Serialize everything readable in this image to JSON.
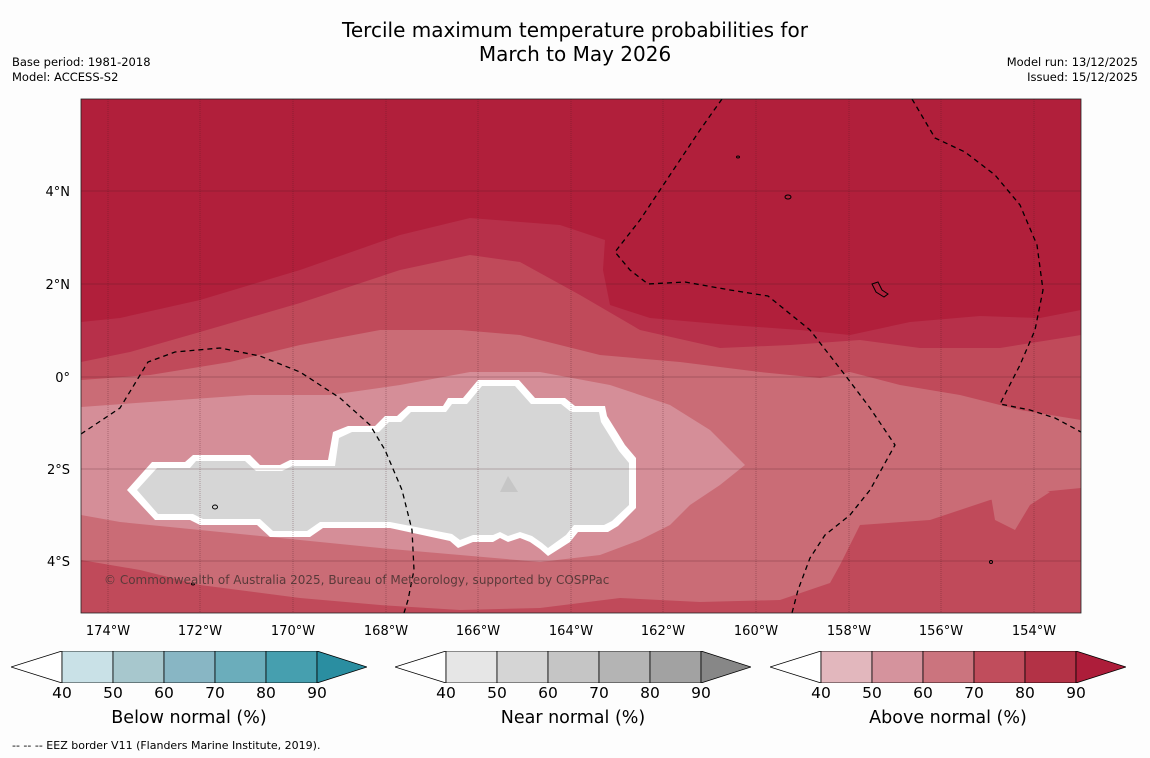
{
  "title_line1": "Tercile maximum temperature probabilities for",
  "title_line2": "March to May 2026",
  "base_period": "Base period: 1981-2018",
  "model": "Model: ACCESS-S2",
  "model_run": "Model run: 13/12/2025",
  "issued": "Issued: 15/12/2025",
  "copyright": "© Commonwealth of Australia 2025, Bureau of Meteorology, supported by COSPPac",
  "lat_labels": [
    "4°N",
    "2°N",
    "0°",
    "2°S",
    "4°S"
  ],
  "lon_labels": [
    "174°W",
    "172°W",
    "170°W",
    "168°W",
    "166°W",
    "164°W",
    "162°W",
    "160°W",
    "158°W",
    "156°W",
    "154°W"
  ],
  "colorbars": [
    {
      "title": "Below normal (%)",
      "ticks": [
        "40",
        "50",
        "60",
        "70",
        "80",
        "90"
      ],
      "colors": [
        "#c9e1e7",
        "#a7c7cd",
        "#88b6c4",
        "#6badbb",
        "#469faf",
        "#2a8ea1"
      ]
    },
    {
      "title": "Near normal (%)",
      "ticks": [
        "40",
        "50",
        "60",
        "70",
        "80",
        "90"
      ],
      "colors": [
        "#e6e6e6",
        "#d5d5d5",
        "#c5c5c5",
        "#b4b4b4",
        "#a2a2a2",
        "#878787"
      ]
    },
    {
      "title": "Above normal (%)",
      "ticks": [
        "40",
        "50",
        "60",
        "70",
        "80",
        "90"
      ],
      "colors": [
        "#e2b7bd",
        "#d5939d",
        "#cb747e",
        "#c04d5c",
        "#b33246",
        "#ad1d3a"
      ]
    }
  ],
  "footnote": "--  --  -- EEZ border V11 (Flanders Marine Institute, 2019)."
}
